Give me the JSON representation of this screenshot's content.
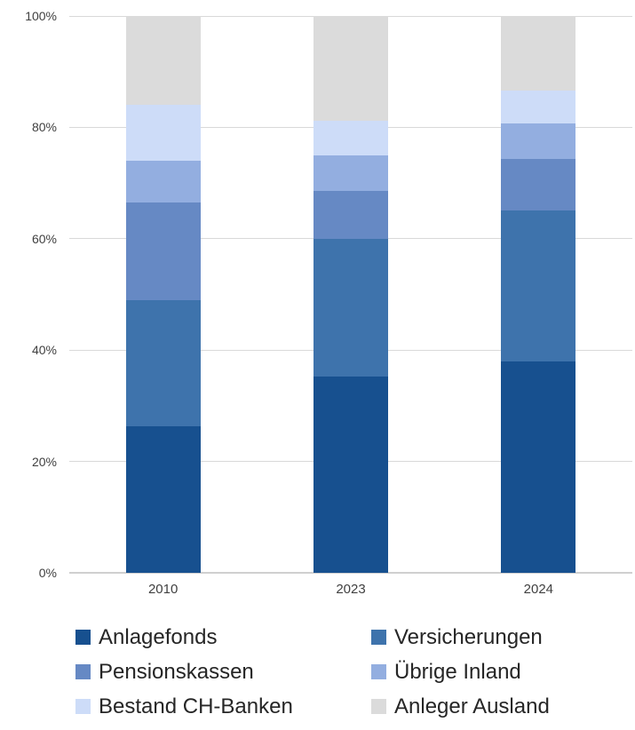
{
  "chart_data": {
    "type": "bar",
    "stacked": true,
    "percent": true,
    "title": "",
    "xlabel": "",
    "ylabel": "",
    "categories": [
      "2010",
      "2023",
      "2024"
    ],
    "series": [
      {
        "name": "Anlagefonds",
        "color": "#17508F",
        "values": [
          26.3,
          35.2,
          37.9
        ]
      },
      {
        "name": "Versicherungen",
        "color": "#3E73AC",
        "values": [
          22.7,
          24.8,
          27.2
        ]
      },
      {
        "name": "Pensionskassen",
        "color": "#6689C4",
        "values": [
          17.5,
          8.6,
          9.3
        ]
      },
      {
        "name": "Übrige Inland",
        "color": "#93AEE0",
        "values": [
          7.5,
          6.4,
          6.3
        ]
      },
      {
        "name": "Bestand CH-Banken",
        "color": "#CDDCF8",
        "values": [
          10.0,
          6.2,
          5.9
        ]
      },
      {
        "name": "Anleger Ausland",
        "color": "#DBDBDB",
        "values": [
          16.0,
          18.8,
          13.4
        ]
      }
    ],
    "y_axis": {
      "min": 0,
      "max": 100,
      "tick_labels": [
        "0%",
        "20%",
        "40%",
        "60%",
        "80%",
        "100%"
      ],
      "grid": true
    },
    "legend": {
      "position": "bottom",
      "columns": 2,
      "order": [
        "Anlagefonds",
        "Versicherungen",
        "Pensionskassen",
        "Übrige Inland",
        "Bestand CH-Banken",
        "Anleger Ausland"
      ]
    },
    "colors": {
      "gridline": "#d9d9d9",
      "axis_text": "#404040",
      "legend_text": "#262626"
    }
  }
}
